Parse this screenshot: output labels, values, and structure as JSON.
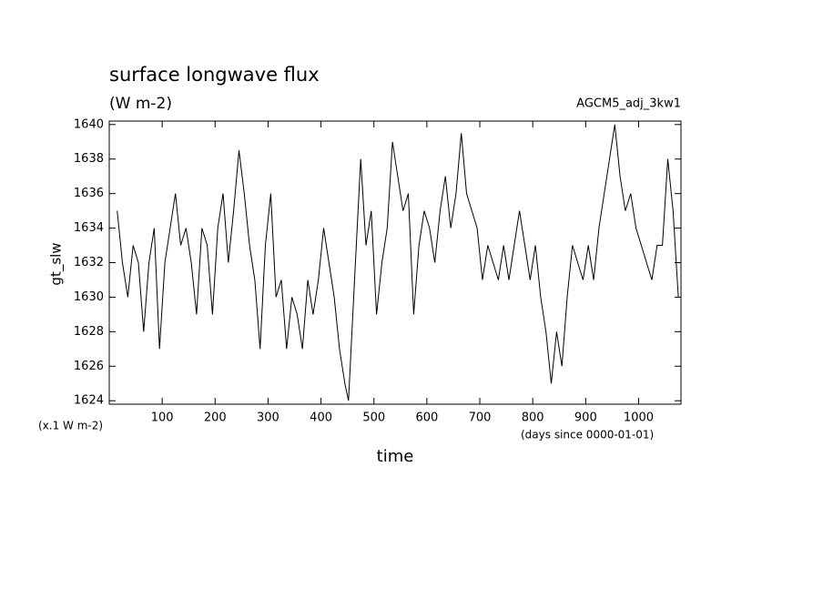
{
  "chart_data": {
    "type": "line",
    "title": "surface longwave flux",
    "subtitle": "(W m-2)",
    "annotation": "AGCM5_adj_3kw1",
    "y_label": "gt_slw",
    "y_unit": "(x.1 W m-2)",
    "x_label": "time",
    "x_unit": "(days since 0000-01-01)",
    "color": "#000000",
    "xlim": [
      0,
      1080
    ],
    "ylim": [
      1623.8,
      1640.2
    ],
    "xticks": [
      100,
      200,
      300,
      400,
      500,
      600,
      700,
      800,
      900,
      1000
    ],
    "yticks": [
      1624,
      1626,
      1628,
      1630,
      1632,
      1634,
      1636,
      1638,
      1640
    ],
    "x": [
      15,
      25,
      35,
      45,
      55,
      65,
      75,
      85,
      95,
      105,
      115,
      125,
      135,
      145,
      155,
      165,
      175,
      185,
      195,
      205,
      215,
      225,
      235,
      245,
      255,
      265,
      275,
      285,
      295,
      305,
      315,
      325,
      335,
      345,
      355,
      365,
      375,
      385,
      395,
      405,
      415,
      425,
      435,
      445,
      452,
      465,
      475,
      485,
      495,
      505,
      515,
      525,
      535,
      545,
      555,
      565,
      575,
      585,
      595,
      605,
      615,
      625,
      635,
      645,
      655,
      665,
      675,
      685,
      695,
      705,
      715,
      725,
      735,
      745,
      755,
      765,
      775,
      785,
      795,
      805,
      815,
      825,
      835,
      845,
      855,
      865,
      875,
      885,
      895,
      905,
      915,
      925,
      935,
      945,
      955,
      965,
      975,
      985,
      995,
      1005,
      1015,
      1025,
      1035,
      1045,
      1055,
      1065,
      1075
    ],
    "values": [
      1635,
      1632,
      1630,
      1633,
      1632,
      1628,
      1632,
      1634,
      1627,
      1632,
      1634,
      1636,
      1633,
      1634,
      1632,
      1629,
      1634,
      1633,
      1629,
      1634,
      1636,
      1632,
      1635,
      1638.5,
      1636,
      1633,
      1631,
      1627,
      1633,
      1636,
      1630,
      1631,
      1627,
      1630,
      1629,
      1627,
      1631,
      1629,
      1631,
      1634,
      1632,
      1630,
      1627,
      1625,
      1624,
      1632,
      1638,
      1633,
      1635,
      1629,
      1632,
      1634,
      1639,
      1637,
      1635,
      1636,
      1629,
      1633,
      1635,
      1634,
      1632,
      1635,
      1637,
      1634,
      1636,
      1639.5,
      1636,
      1635,
      1634,
      1631,
      1633,
      1632,
      1631,
      1633,
      1631,
      1633,
      1635,
      1633,
      1631,
      1633,
      1630,
      1628,
      1625,
      1628,
      1626,
      1630,
      1633,
      1632,
      1631,
      1633,
      1631,
      1634,
      1636,
      1638,
      1640,
      1637,
      1635,
      1636,
      1634,
      1633,
      1632,
      1631,
      1633,
      1633,
      1638,
      1635,
      1630
    ]
  }
}
